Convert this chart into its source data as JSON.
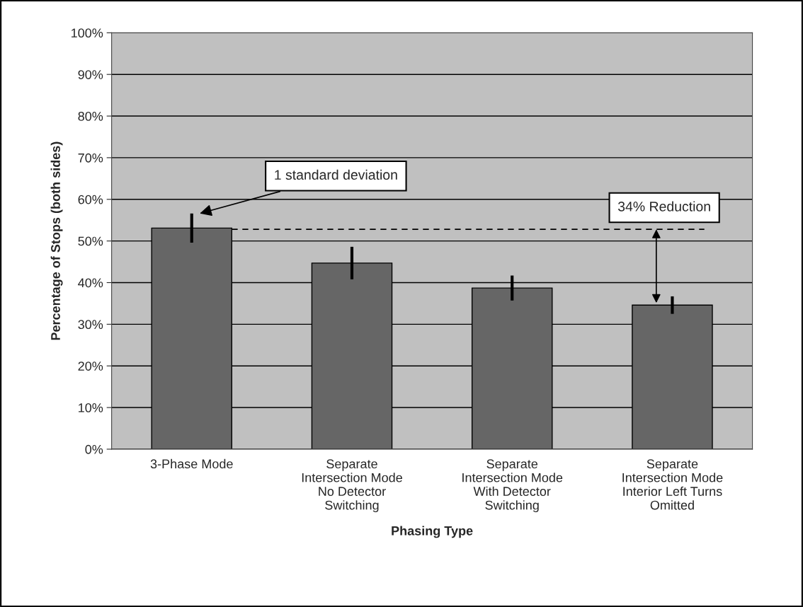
{
  "chart_data": {
    "type": "bar",
    "categories": [
      "3-Phase Mode",
      "Separate\nIntersection Mode\nNo Detector\nSwitching",
      "Separate\nIntersection Mode\nWith Detector\nSwitching",
      "Separate\nIntersection Mode\nInterior Left Turns\nOmitted"
    ],
    "values": [
      53.1,
      44.7,
      38.7,
      34.6
    ],
    "errors": [
      3.5,
      3.9,
      3.0,
      2.1
    ],
    "color": "#666666",
    "xlabel": "Phasing Type",
    "ylabel": "Percentage of Stops (both sides)",
    "ylim": [
      0,
      100
    ],
    "yticks": [
      {
        "value": 0,
        "label": "0%"
      },
      {
        "value": 10,
        "label": "10%"
      },
      {
        "value": 20,
        "label": "20%"
      },
      {
        "value": 30,
        "label": "30%"
      },
      {
        "value": 40,
        "label": "40%"
      },
      {
        "value": 50,
        "label": "50%"
      },
      {
        "value": 60,
        "label": "60%"
      },
      {
        "value": 70,
        "label": "70%"
      },
      {
        "value": 80,
        "label": "80%"
      },
      {
        "value": 90,
        "label": "90%"
      },
      {
        "value": 100,
        "label": "100%"
      }
    ],
    "grid": "y",
    "ref_lines": [
      {
        "axis": "y",
        "value": 52.8,
        "line_style": "dashed",
        "color": "#000000"
      }
    ],
    "annotations": [
      "1 standard deviation",
      "34% Reduction"
    ]
  }
}
